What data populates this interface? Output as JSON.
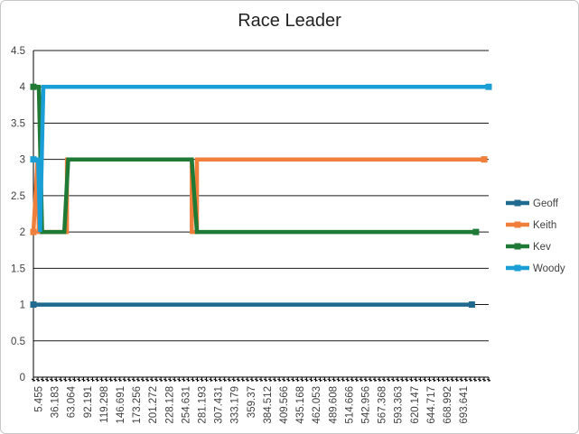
{
  "chart_data": {
    "type": "line",
    "title": "Race Leader",
    "xlabel": "",
    "ylabel": "",
    "ylim": [
      0,
      4.5
    ],
    "yticks": [
      "0",
      "0.5",
      "1",
      "1.5",
      "2",
      "2.5",
      "3",
      "3.5",
      "4",
      "4.5"
    ],
    "x_tick_labels": [
      "5.455",
      "36.183",
      "63.064",
      "92.191",
      "119.298",
      "146.691",
      "173.256",
      "201.272",
      "228.128",
      "254.631",
      "281.193",
      "307.431",
      "333.179",
      "359.37",
      "384.512",
      "409.566",
      "435.168",
      "462.053",
      "489.608",
      "514.666",
      "542.956",
      "567.368",
      "593.363",
      "620.147",
      "644.717",
      "668.992",
      "693.641"
    ],
    "grid": true,
    "legend_position": "right",
    "series": [
      {
        "name": "Geoff",
        "color": "#1F6A8E",
        "points": [
          [
            5.455,
            1
          ],
          [
            693.641,
            1
          ]
        ]
      },
      {
        "name": "Keith",
        "color": "#F07F3C",
        "points": [
          [
            5.455,
            2
          ],
          [
            12,
            3
          ],
          [
            14,
            2
          ],
          [
            58,
            2
          ],
          [
            58,
            3
          ],
          [
            254,
            3
          ],
          [
            254,
            2
          ],
          [
            262,
            2
          ],
          [
            262,
            3
          ],
          [
            713,
            3
          ]
        ]
      },
      {
        "name": "Kev",
        "color": "#1E7A35",
        "points": [
          [
            5.455,
            4
          ],
          [
            14,
            4
          ],
          [
            19,
            2
          ],
          [
            54,
            2
          ],
          [
            60,
            3
          ],
          [
            254,
            3
          ],
          [
            262,
            2
          ],
          [
            700,
            2
          ]
        ]
      },
      {
        "name": "Woody",
        "color": "#199FD6",
        "points": [
          [
            5.455,
            3
          ],
          [
            13,
            3
          ],
          [
            16,
            2
          ],
          [
            21,
            4
          ],
          [
            720,
            4
          ]
        ]
      }
    ]
  }
}
